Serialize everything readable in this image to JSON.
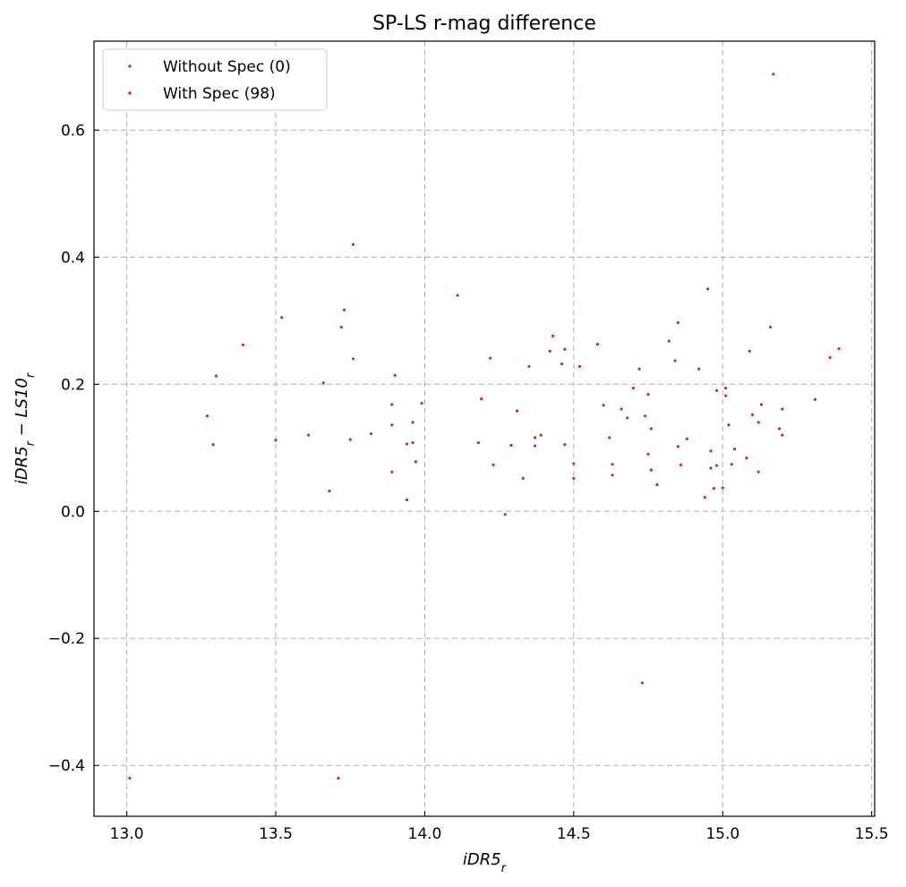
{
  "chart_data": {
    "type": "scatter",
    "title": "SP-LS r-mag difference",
    "xlabel": "iDR5_r",
    "ylabel": "iDR5_r − LS10_r",
    "xlabel_parts": {
      "base": "iDR5",
      "sub": "r"
    },
    "ylabel_parts": {
      "a": "iDR5",
      "a_sub": "r",
      "op": " − ",
      "b": "LS10",
      "b_sub": "r"
    },
    "xlim": [
      12.89,
      15.51
    ],
    "ylim": [
      -0.48,
      0.74
    ],
    "xticks": [
      13.0,
      13.5,
      14.0,
      14.5,
      15.0,
      15.5
    ],
    "xtick_labels": [
      "13.0",
      "13.5",
      "14.0",
      "14.5",
      "15.0",
      "15.5"
    ],
    "yticks": [
      -0.4,
      -0.2,
      0.0,
      0.2,
      0.4,
      0.6
    ],
    "ytick_labels": [
      "−0.4",
      "−0.2",
      "0.0",
      "0.2",
      "0.4",
      "0.6"
    ],
    "grid": true,
    "legend_position": "upper-left",
    "series": [
      {
        "name": "Without Spec (0)",
        "color": "#1f77b4",
        "points": []
      },
      {
        "name": "With Spec (98)",
        "color": "#d62728",
        "points": [
          [
            13.01,
            -0.42
          ],
          [
            13.27,
            0.15
          ],
          [
            13.29,
            0.105
          ],
          [
            13.3,
            0.213
          ],
          [
            13.39,
            0.262
          ],
          [
            13.5,
            0.112
          ],
          [
            13.52,
            0.305
          ],
          [
            13.61,
            0.12
          ],
          [
            13.66,
            0.202
          ],
          [
            13.68,
            0.032
          ],
          [
            13.71,
            -0.42
          ],
          [
            13.72,
            0.29
          ],
          [
            13.73,
            0.317
          ],
          [
            13.75,
            0.113
          ],
          [
            13.76,
            0.42
          ],
          [
            13.76,
            0.24
          ],
          [
            13.82,
            0.122
          ],
          [
            13.89,
            0.136
          ],
          [
            13.89,
            0.168
          ],
          [
            13.89,
            0.062
          ],
          [
            13.9,
            0.214
          ],
          [
            13.94,
            0.106
          ],
          [
            13.94,
            0.018
          ],
          [
            13.96,
            0.14
          ],
          [
            13.96,
            0.108
          ],
          [
            13.97,
            0.078
          ],
          [
            13.99,
            0.17
          ],
          [
            14.11,
            0.34
          ],
          [
            14.18,
            0.108
          ],
          [
            14.19,
            0.177
          ],
          [
            14.22,
            0.241
          ],
          [
            14.23,
            0.073
          ],
          [
            14.27,
            -0.005
          ],
          [
            14.29,
            0.104
          ],
          [
            14.31,
            0.158
          ],
          [
            14.33,
            0.052
          ],
          [
            14.35,
            0.228
          ],
          [
            14.37,
            0.116
          ],
          [
            14.37,
            0.103
          ],
          [
            14.39,
            0.12
          ],
          [
            14.42,
            0.252
          ],
          [
            14.43,
            0.276
          ],
          [
            14.46,
            0.232
          ],
          [
            14.47,
            0.105
          ],
          [
            14.47,
            0.255
          ],
          [
            14.5,
            0.075
          ],
          [
            14.5,
            0.052
          ],
          [
            14.52,
            0.228
          ],
          [
            14.58,
            0.263
          ],
          [
            14.6,
            0.167
          ],
          [
            14.62,
            0.116
          ],
          [
            14.63,
            0.074
          ],
          [
            14.63,
            0.057
          ],
          [
            14.66,
            0.161
          ],
          [
            14.68,
            0.147
          ],
          [
            14.7,
            0.194
          ],
          [
            14.72,
            0.224
          ],
          [
            14.73,
            -0.27
          ],
          [
            14.74,
            0.15
          ],
          [
            14.75,
            0.184
          ],
          [
            14.75,
            0.09
          ],
          [
            14.76,
            0.13
          ],
          [
            14.76,
            0.065
          ],
          [
            14.78,
            0.042
          ],
          [
            14.82,
            0.268
          ],
          [
            14.84,
            0.237
          ],
          [
            14.85,
            0.297
          ],
          [
            14.85,
            0.102
          ],
          [
            14.86,
            0.073
          ],
          [
            14.88,
            0.114
          ],
          [
            14.92,
            0.224
          ],
          [
            14.94,
            0.022
          ],
          [
            14.95,
            0.35
          ],
          [
            14.96,
            0.068
          ],
          [
            14.96,
            0.095
          ],
          [
            14.97,
            0.036
          ],
          [
            14.98,
            0.072
          ],
          [
            14.98,
            0.19
          ],
          [
            15.0,
            0.037
          ],
          [
            15.01,
            0.182
          ],
          [
            15.01,
            0.194
          ],
          [
            15.02,
            0.136
          ],
          [
            15.03,
            0.074
          ],
          [
            15.04,
            0.098
          ],
          [
            15.08,
            0.084
          ],
          [
            15.09,
            0.252
          ],
          [
            15.1,
            0.152
          ],
          [
            15.12,
            0.14
          ],
          [
            15.12,
            0.062
          ],
          [
            15.13,
            0.168
          ],
          [
            15.16,
            0.29
          ],
          [
            15.17,
            0.688
          ],
          [
            15.19,
            0.13
          ],
          [
            15.2,
            0.161
          ],
          [
            15.2,
            0.12
          ],
          [
            15.31,
            0.176
          ],
          [
            15.36,
            0.242
          ],
          [
            15.39,
            0.256
          ]
        ]
      }
    ]
  }
}
